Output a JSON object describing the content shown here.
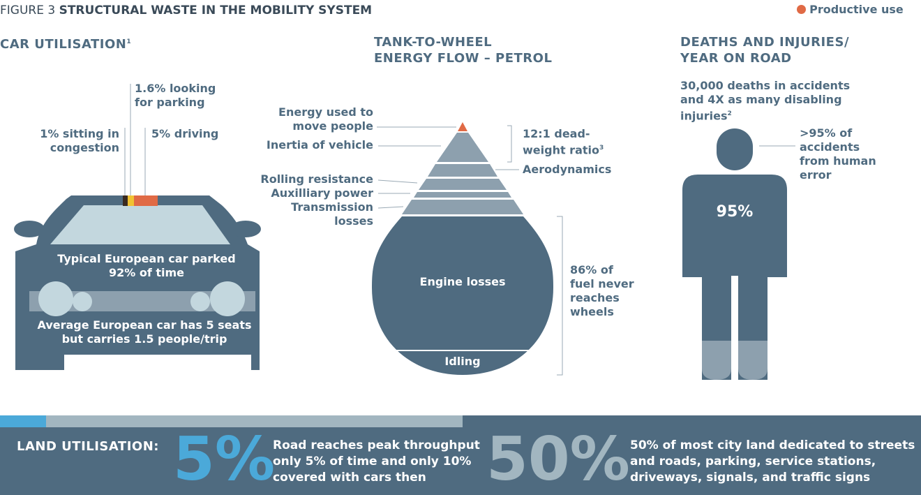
{
  "header": {
    "figure_label": "FIGURE 3",
    "title": "STRUCTURAL WASTE IN THE MOBILITY SYSTEM",
    "legend_label": "Productive use",
    "legend_color": "#e06a45"
  },
  "car": {
    "heading": "CAR UTILISATION",
    "heading_sup": "1",
    "looking_parking": [
      "1.6% looking",
      "for parking"
    ],
    "congestion": [
      "1% sitting in",
      "congestion"
    ],
    "driving": "5% driving",
    "parked": [
      "Typical European car parked",
      "92% of time"
    ],
    "seats": [
      "Average European car has 5 seats",
      "but carries 1.5 people/trip"
    ]
  },
  "energy": {
    "heading": [
      "TANK-TO-WHEEL",
      "ENERGY FLOW – PETROL"
    ],
    "move_people": [
      "Energy used to",
      "move people"
    ],
    "inertia": "Inertia of vehicle",
    "rolling": "Rolling resistance",
    "auxiliary": "Auxilliary power",
    "transmission": [
      "Transmission",
      "losses"
    ],
    "deadweight": [
      "12:1 dead-",
      "weight ratio"
    ],
    "deadweight_sup": "3",
    "aerodynamics": "Aerodynamics",
    "engine_losses": "Engine losses",
    "idling": "Idling",
    "never_reaches": [
      "86% of",
      "fuel never",
      "reaches",
      "wheels"
    ]
  },
  "deaths": {
    "heading": [
      "DEATHS AND INJURIES/",
      "YEAR ON ROAD"
    ],
    "stat": [
      "30,000 deaths in accidents",
      "and 4X as many disabling",
      "injuries"
    ],
    "stat_sup": "2",
    "human_error": [
      ">95% of",
      "accidents",
      "from human",
      "error"
    ],
    "percent": "95%"
  },
  "land": {
    "label": "LAND UTILISATION:",
    "big1": "5%",
    "text1": [
      "Road reaches peak throughput",
      "only 5% of time and only 10%",
      "covered with cars then"
    ],
    "big2": "50%",
    "text2": [
      "50% of most city land dedicated to streets",
      "and roads, parking, service stations,",
      "driveways, signals, and traffic signs"
    ]
  },
  "colors": {
    "dark": "#4f6b80",
    "mid": "#8da0ae",
    "light": "#c3d7de",
    "accent": "#e06a45",
    "blue": "#4ba9d9",
    "yellow": "#f1c232"
  }
}
